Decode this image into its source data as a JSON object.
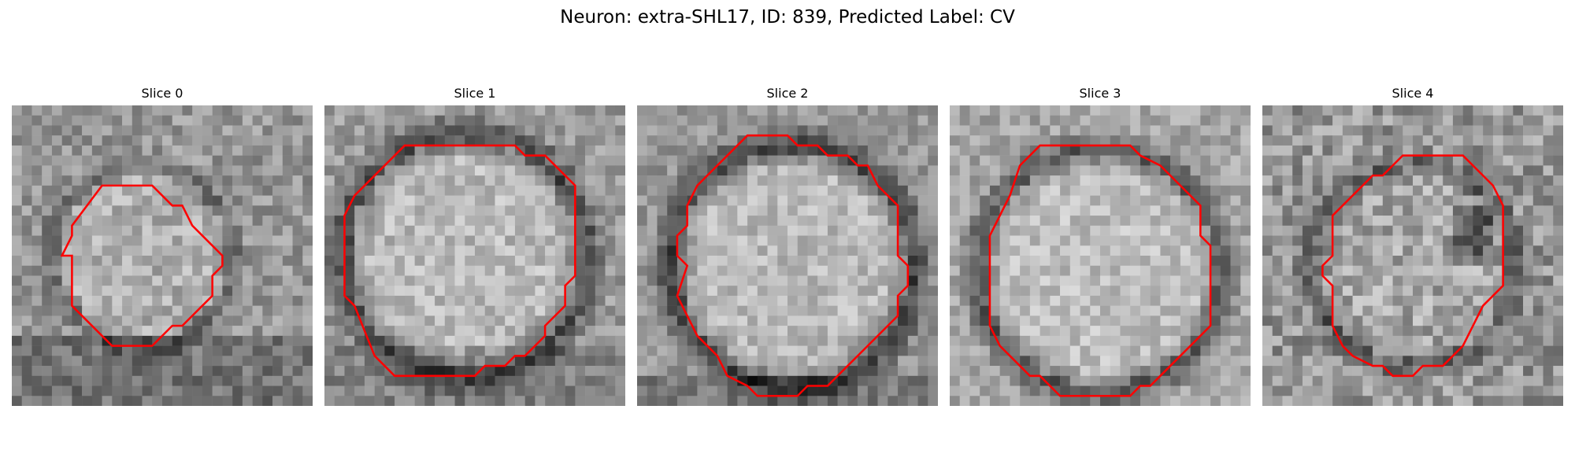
{
  "figure": {
    "title": "Neuron: extra-SHL17, ID: 839, Predicted Label: CV",
    "background_color": "#ffffff",
    "contour_color": "#ff0000"
  },
  "panels": [
    {
      "title": "Slice 0",
      "contour": [
        [
          9,
          8
        ],
        [
          14,
          8
        ],
        [
          16,
          10
        ],
        [
          17,
          10
        ],
        [
          18,
          12
        ],
        [
          21,
          15
        ],
        [
          21,
          16
        ],
        [
          20,
          17
        ],
        [
          20,
          19
        ],
        [
          18,
          21
        ],
        [
          17,
          22
        ],
        [
          16,
          22
        ],
        [
          14,
          24
        ],
        [
          10,
          24
        ],
        [
          6,
          20
        ],
        [
          6,
          15
        ],
        [
          5,
          15
        ],
        [
          6,
          13
        ],
        [
          6,
          12
        ]
      ]
    },
    {
      "title": "Slice 1",
      "contour": [
        [
          8,
          4
        ],
        [
          19,
          4
        ],
        [
          20,
          5
        ],
        [
          22,
          5
        ],
        [
          25,
          8
        ],
        [
          25,
          17
        ],
        [
          24,
          18
        ],
        [
          24,
          20
        ],
        [
          23,
          21
        ],
        [
          22,
          22
        ],
        [
          22,
          23
        ],
        [
          20,
          25
        ],
        [
          19,
          25
        ],
        [
          18,
          26
        ],
        [
          16,
          26
        ],
        [
          15,
          27
        ],
        [
          7,
          27
        ],
        [
          5,
          25
        ],
        [
          3,
          20
        ],
        [
          2,
          19
        ],
        [
          2,
          11
        ],
        [
          3,
          9
        ]
      ]
    },
    {
      "title": "Slice 2",
      "contour": [
        [
          11,
          3
        ],
        [
          15,
          3
        ],
        [
          16,
          4
        ],
        [
          18,
          4
        ],
        [
          19,
          5
        ],
        [
          21,
          5
        ],
        [
          22,
          6
        ],
        [
          23,
          6
        ],
        [
          24,
          8
        ],
        [
          26,
          10
        ],
        [
          26,
          15
        ],
        [
          27,
          16
        ],
        [
          27,
          18
        ],
        [
          26,
          19
        ],
        [
          26,
          21
        ],
        [
          24,
          23
        ],
        [
          23,
          24
        ],
        [
          21,
          26
        ],
        [
          19,
          28
        ],
        [
          17,
          28
        ],
        [
          16,
          29
        ],
        [
          12,
          29
        ],
        [
          11,
          28
        ],
        [
          9,
          27
        ],
        [
          8,
          25
        ],
        [
          6,
          23
        ],
        [
          5,
          21
        ],
        [
          4,
          19
        ],
        [
          5,
          16
        ],
        [
          4,
          15
        ],
        [
          4,
          13
        ],
        [
          5,
          12
        ],
        [
          5,
          10
        ],
        [
          6,
          8
        ],
        [
          7,
          7
        ],
        [
          8,
          6
        ],
        [
          9,
          5
        ],
        [
          10,
          4
        ]
      ]
    },
    {
      "title": "Slice 3",
      "contour": [
        [
          9,
          4
        ],
        [
          18,
          4
        ],
        [
          19,
          5
        ],
        [
          21,
          6
        ],
        [
          22,
          7
        ],
        [
          24,
          9
        ],
        [
          25,
          10
        ],
        [
          25,
          13
        ],
        [
          26,
          14
        ],
        [
          26,
          22
        ],
        [
          24,
          24
        ],
        [
          23,
          25
        ],
        [
          22,
          26
        ],
        [
          21,
          27
        ],
        [
          20,
          28
        ],
        [
          19,
          28
        ],
        [
          18,
          29
        ],
        [
          11,
          29
        ],
        [
          9,
          27
        ],
        [
          8,
          27
        ],
        [
          6,
          25
        ],
        [
          5,
          24
        ],
        [
          4,
          22
        ],
        [
          4,
          13
        ],
        [
          5,
          11
        ],
        [
          6,
          9
        ],
        [
          7,
          6
        ]
      ]
    },
    {
      "title": "Slice 4",
      "contour": [
        [
          14,
          5
        ],
        [
          20,
          5
        ],
        [
          22,
          7
        ],
        [
          23,
          8
        ],
        [
          24,
          10
        ],
        [
          24,
          18
        ],
        [
          23,
          19
        ],
        [
          22,
          20
        ],
        [
          21,
          22
        ],
        [
          20,
          24
        ],
        [
          18,
          26
        ],
        [
          16,
          26
        ],
        [
          15,
          27
        ],
        [
          13,
          27
        ],
        [
          12,
          26
        ],
        [
          11,
          26
        ],
        [
          9,
          25
        ],
        [
          8,
          24
        ],
        [
          7,
          22
        ],
        [
          7,
          18
        ],
        [
          6,
          17
        ],
        [
          6,
          16
        ],
        [
          7,
          15
        ],
        [
          7,
          11
        ],
        [
          8,
          10
        ],
        [
          10,
          8
        ],
        [
          11,
          7
        ],
        [
          12,
          7
        ],
        [
          13,
          6
        ]
      ]
    }
  ]
}
